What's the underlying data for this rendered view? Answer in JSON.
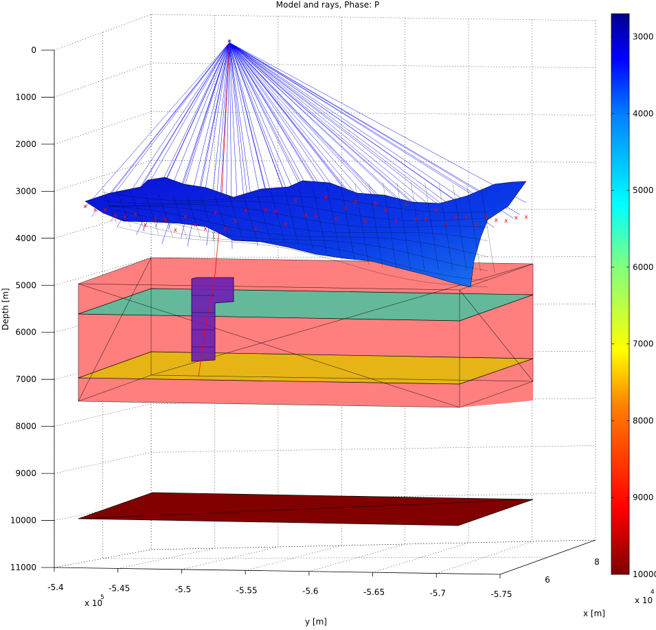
{
  "chart_data": {
    "type": "3d-model-rays",
    "title": "Model and rays, Phase: P",
    "xlabel": "x [m]",
    "ylabel": "y [m]",
    "zlabel": "Depth [m]",
    "y_ticks": [
      "-5.4",
      "-5.45",
      "-5.5",
      "-5.55",
      "-5.6",
      "-5.65",
      "-5.7",
      "-5.75"
    ],
    "y_exponent_base": "x 10",
    "y_exponent": "5",
    "x_ticks": [
      "6",
      "8"
    ],
    "x_exponent_base": "x 10",
    "x_exponent": "4",
    "depth_ticks": [
      "0",
      "1000",
      "2000",
      "3000",
      "4000",
      "5000",
      "6000",
      "7000",
      "8000",
      "9000",
      "10000",
      "11000"
    ],
    "depth_range": [
      0,
      11000
    ],
    "colorbar": {
      "ticks": [
        "3000",
        "4000",
        "5000",
        "6000",
        "7000",
        "8000",
        "9000",
        "10000"
      ],
      "range": [
        2700,
        10000
      ],
      "colormap": "jet"
    },
    "grid": "dotted",
    "source_depth": 0,
    "surface_depth_range": [
      3000,
      5000
    ],
    "layers": [
      {
        "type": "block",
        "depth_top": 5000,
        "depth_bottom": 7500,
        "color": "#ff7f7f"
      },
      {
        "type": "interface",
        "depth": 5600,
        "color": "#64b99b"
      },
      {
        "type": "interface",
        "depth": 7000,
        "color": "#e6b414"
      },
      {
        "type": "interface",
        "depth": 10000,
        "color": "#800000"
      },
      {
        "type": "inclusion",
        "color": "#6a1fb0"
      }
    ],
    "ray_color": "#0000ff",
    "receiver_marker_color": "#ff0000"
  }
}
